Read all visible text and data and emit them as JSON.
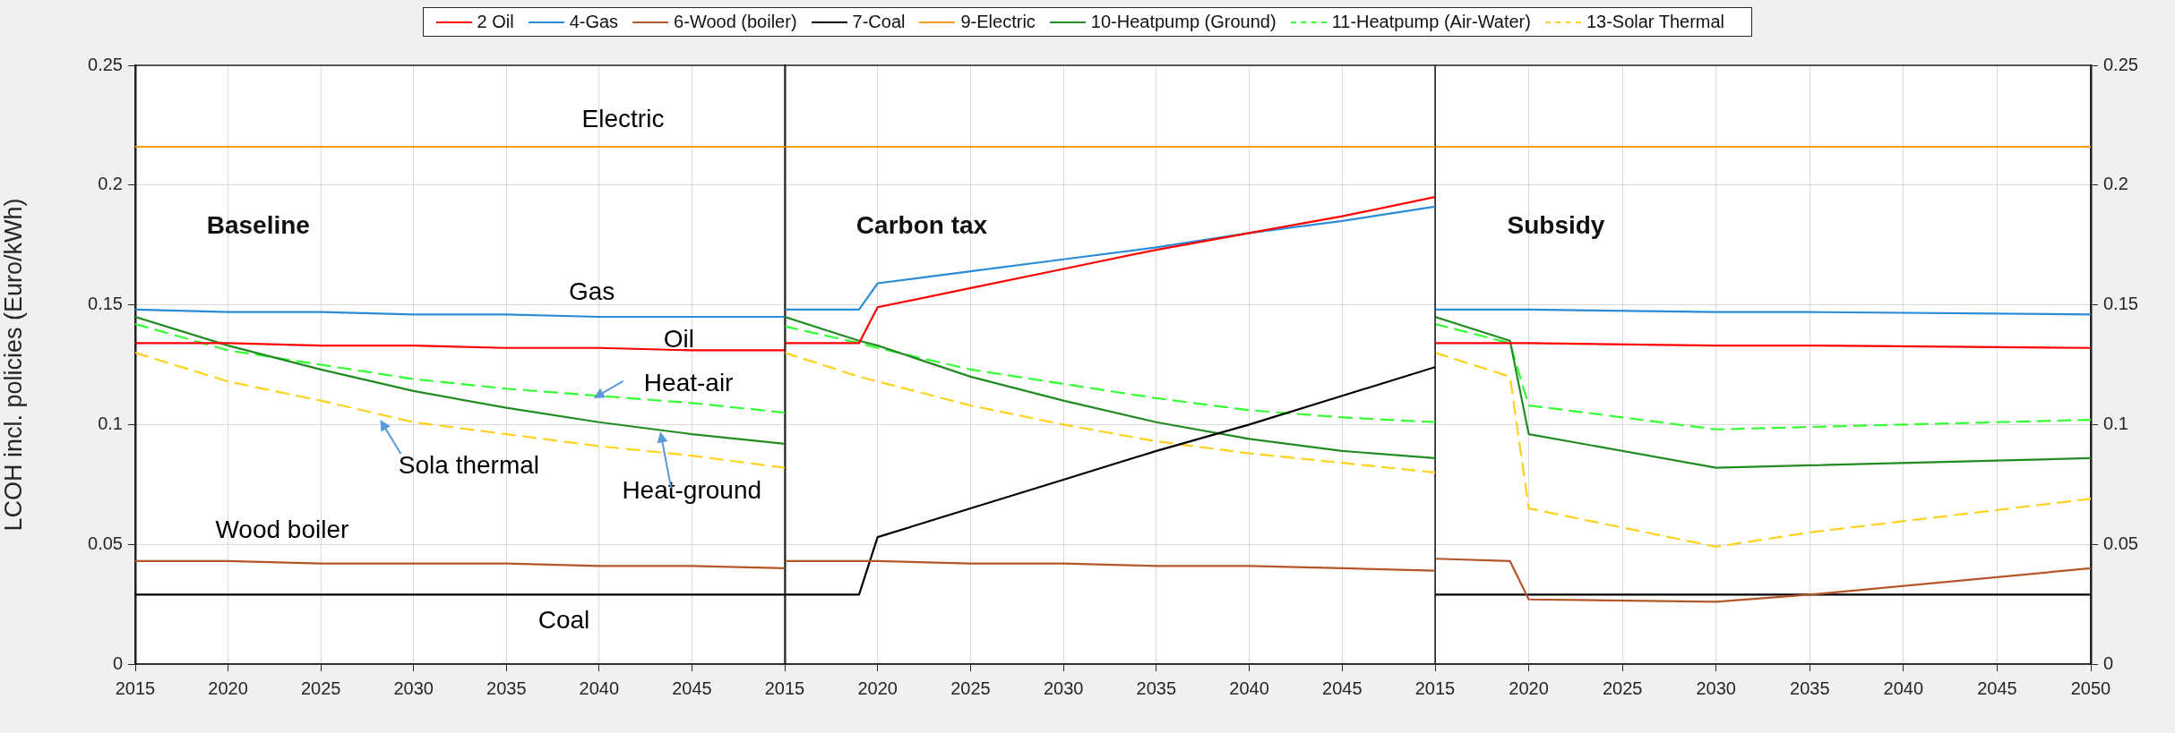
{
  "chart_data": [
    {
      "type": "line",
      "title": "Baseline",
      "ylabel": "LCOH incl. policies (Euro/kWh)",
      "x": [
        2015,
        2020,
        2025,
        2030,
        2035,
        2040,
        2045,
        2050
      ],
      "xlim": [
        2015,
        2050
      ],
      "xticks": [
        2015,
        2020,
        2025,
        2030,
        2035,
        2040,
        2045
      ],
      "ylim": [
        0,
        0.25
      ],
      "yticks": [
        0,
        0.05,
        0.1,
        0.15,
        0.2,
        0.25
      ],
      "grid": true,
      "legend": "top",
      "series": [
        {
          "name": "2 Oil",
          "color": "#ff0000",
          "values": [
            0.134,
            0.134,
            0.133,
            0.133,
            0.132,
            0.132,
            0.131,
            0.131
          ]
        },
        {
          "name": "4-Gas",
          "color": "#2b8cd8",
          "values": [
            0.148,
            0.147,
            0.147,
            0.146,
            0.146,
            0.145,
            0.145,
            0.145
          ]
        },
        {
          "name": "6-Wood (boiler)",
          "color": "#b5562a",
          "values": [
            0.043,
            0.043,
            0.042,
            0.042,
            0.042,
            0.041,
            0.041,
            0.04
          ]
        },
        {
          "name": "7-Coal",
          "color": "#000000",
          "values": [
            0.029,
            0.029,
            0.029,
            0.029,
            0.029,
            0.029,
            0.029,
            0.029
          ]
        },
        {
          "name": "9-Electric",
          "color": "#f39c1a",
          "values": [
            0.216,
            0.216,
            0.216,
            0.216,
            0.216,
            0.216,
            0.216,
            0.216
          ]
        },
        {
          "name": "10-Heatpump (Ground)",
          "color": "#228b22",
          "values": [
            0.145,
            0.133,
            0.123,
            0.114,
            0.107,
            0.101,
            0.096,
            0.092
          ]
        },
        {
          "name": "11-Heatpump (Air-Water)",
          "color": "#33ff33",
          "line_style": "dashed",
          "values": [
            0.142,
            0.131,
            0.125,
            0.119,
            0.115,
            0.112,
            0.109,
            0.105
          ]
        },
        {
          "name": "13-Solar Thermal",
          "color": "#ffd11a",
          "line_style": "dashed",
          "values": [
            0.13,
            0.118,
            0.11,
            0.101,
            0.096,
            0.091,
            0.087,
            0.082
          ]
        }
      ],
      "annotations": [
        "Electric",
        "Gas",
        "Oil",
        {
          "text": "Heat-air",
          "x": 2039.7,
          "y": 0.111
        },
        {
          "text": "Sola thermal",
          "x": 2028.2,
          "y": 0.102
        },
        {
          "text": "Heat-ground",
          "x": 2043.3,
          "y": 0.097
        },
        "Wood boiler",
        "Coal"
      ]
    },
    {
      "type": "line",
      "title": "Carbon tax",
      "x": [
        2015,
        2019,
        2020,
        2025,
        2030,
        2035,
        2040,
        2045,
        2050
      ],
      "xlim": [
        2015,
        2050
      ],
      "xticks": [
        2015,
        2020,
        2025,
        2030,
        2035,
        2040,
        2045
      ],
      "ylim": [
        0,
        0.25
      ],
      "yticks": [
        0,
        0.05,
        0.1,
        0.15,
        0.2,
        0.25
      ],
      "grid": true,
      "tick_labels": "x",
      "series": [
        {
          "color": "#ff0000",
          "values": [
            0.134,
            0.134,
            0.149,
            0.157,
            0.165,
            0.173,
            0.18,
            0.187,
            0.195
          ]
        },
        {
          "color": "#2b8cd8",
          "values": [
            0.148,
            0.148,
            0.159,
            0.164,
            0.169,
            0.174,
            0.18,
            0.185,
            0.191
          ]
        },
        {
          "color": "#b5562a",
          "values": [
            0.043,
            0.043,
            0.043,
            0.042,
            0.042,
            0.041,
            0.041,
            0.04,
            0.039
          ]
        },
        {
          "color": "#000000",
          "values": [
            0.029,
            0.029,
            0.053,
            0.065,
            0.077,
            0.089,
            0.1,
            0.112,
            0.124
          ]
        },
        {
          "color": "#f39c1a",
          "values": [
            0.216,
            0.216,
            0.216,
            0.216,
            0.216,
            0.216,
            0.216,
            0.216,
            0.216
          ]
        },
        {
          "color": "#228b22",
          "values": [
            0.145,
            0.135,
            0.133,
            0.12,
            0.11,
            0.101,
            0.094,
            0.089,
            0.086
          ]
        },
        {
          "color": "#33ff33",
          "line_style": "dashed",
          "values": [
            0.141,
            0.134,
            0.132,
            0.123,
            0.117,
            0.111,
            0.106,
            0.103,
            0.101
          ]
        },
        {
          "color": "#ffd11a",
          "line_style": "dashed",
          "values": [
            0.13,
            0.12,
            0.118,
            0.108,
            0.1,
            0.093,
            0.088,
            0.084,
            0.08
          ]
        }
      ]
    },
    {
      "type": "line",
      "title": "Subsidy",
      "x": [
        2015,
        2019,
        2020,
        2030,
        2035,
        2050
      ],
      "xlim": [
        2015,
        2050
      ],
      "xticks": [
        2015,
        2020,
        2025,
        2030,
        2035,
        2040,
        2045,
        2050
      ],
      "y2lim": [
        0,
        0.25
      ],
      "y2ticks": [
        0,
        0.05,
        0.1,
        0.15,
        0.2,
        0.25
      ],
      "grid": true,
      "series": [
        {
          "color": "#ff0000",
          "axis": "y2",
          "values": [
            0.134,
            0.134,
            0.134,
            0.133,
            0.133,
            0.132
          ]
        },
        {
          "color": "#2b8cd8",
          "axis": "y2",
          "values": [
            0.148,
            0.148,
            0.148,
            0.147,
            0.147,
            0.146
          ]
        },
        {
          "color": "#b5562a",
          "axis": "y2",
          "values": [
            0.044,
            0.043,
            0.027,
            0.026,
            0.029,
            0.04
          ]
        },
        {
          "color": "#000000",
          "axis": "y2",
          "values": [
            0.029,
            0.029,
            0.029,
            0.029,
            0.029,
            0.029
          ]
        },
        {
          "color": "#f39c1a",
          "axis": "y2",
          "values": [
            0.216,
            0.216,
            0.216,
            0.216,
            0.216,
            0.216
          ]
        },
        {
          "color": "#228b22",
          "axis": "y2",
          "values": [
            0.145,
            0.135,
            0.096,
            0.082,
            0.083,
            0.086
          ]
        },
        {
          "color": "#33ff33",
          "axis": "y2",
          "line_style": "dashed",
          "values": [
            0.142,
            0.134,
            0.108,
            0.098,
            0.099,
            0.102
          ]
        },
        {
          "color": "#ffd11a",
          "axis": "y2",
          "line_style": "dashed",
          "values": [
            0.13,
            0.12,
            0.065,
            0.049,
            0.055,
            0.069
          ]
        }
      ]
    }
  ]
}
